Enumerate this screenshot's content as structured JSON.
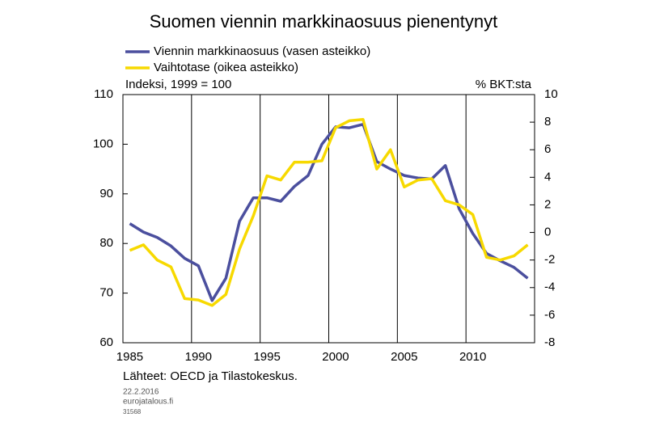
{
  "chart_data": {
    "type": "line",
    "title": "Suomen viennin markkinaosuus pienentynyt",
    "y_label": "Indeksi, 1999 = 100",
    "y2_label": "% BKT:sta",
    "source": "Lähteet: OECD ja Tilastokeskus.",
    "date": "22.2.2016",
    "site": "eurojatalous.fi",
    "code": "31568",
    "x": [
      1985,
      1986,
      1987,
      1988,
      1989,
      1990,
      1991,
      1992,
      1993,
      1994,
      1995,
      1996,
      1997,
      1998,
      1999,
      2000,
      2001,
      2002,
      2003,
      2004,
      2005,
      2006,
      2007,
      2008,
      2009,
      2010,
      2011,
      2012,
      2013,
      2014
    ],
    "xlim": [
      1985,
      2015
    ],
    "xticks": [
      1985,
      1990,
      1995,
      2000,
      2005,
      2010
    ],
    "ylim": [
      60,
      110
    ],
    "yticks": [
      60,
      70,
      80,
      90,
      100,
      110
    ],
    "y2lim": [
      -8,
      10
    ],
    "y2ticks": [
      -8,
      -6,
      -4,
      -2,
      0,
      2,
      4,
      6,
      8,
      10
    ],
    "grid": true,
    "series": [
      {
        "name": "Viennin markkinaosuus (vasen asteikko)",
        "color": "#4b4f9e",
        "values": [
          84,
          82.3,
          81.2,
          79.5,
          77,
          75.5,
          68.5,
          73,
          84.5,
          89.2,
          89.2,
          88.5,
          91.5,
          93.7,
          100,
          103.5,
          103.3,
          104,
          96.5,
          95,
          93.7,
          93.2,
          93,
          95.7,
          87,
          82,
          78,
          76.5,
          75.2,
          73
        ]
      },
      {
        "name": "Vaihtotase (oikea asteikko)",
        "color": "#f7d900",
        "axis": "y2",
        "values": [
          -1.3,
          -0.9,
          -2.0,
          -2.5,
          -4.8,
          -4.9,
          -5.3,
          -4.5,
          -1.2,
          1.2,
          4.1,
          3.8,
          5.1,
          5.1,
          5.2,
          7.6,
          8.1,
          8.2,
          4.6,
          6.0,
          3.3,
          3.8,
          3.9,
          2.3,
          2.0,
          1.3,
          -1.8,
          -2.0,
          -1.7,
          -0.9
        ]
      }
    ]
  }
}
